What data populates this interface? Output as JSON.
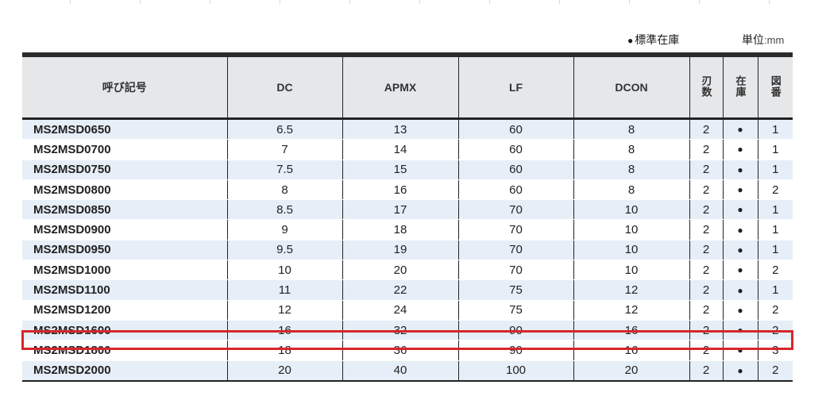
{
  "legend": {
    "symbol": "●",
    "label": "標準在庫"
  },
  "unit": {
    "label": "単位",
    "value": ":mm"
  },
  "table": {
    "headers": {
      "code": "呼び記号",
      "dc": "DC",
      "apmx": "APMX",
      "lf": "LF",
      "dcon": "DCON",
      "flutes": "刃数",
      "stock": "在庫",
      "drawing": "図番"
    },
    "rows": [
      {
        "code": "MS2MSD0650",
        "dc": "6.5",
        "apmx": "13",
        "lf": "60",
        "dcon": "8",
        "flutes": "2",
        "stock": "●",
        "drawing": "1"
      },
      {
        "code": "MS2MSD0700",
        "dc": "7",
        "apmx": "14",
        "lf": "60",
        "dcon": "8",
        "flutes": "2",
        "stock": "●",
        "drawing": "1"
      },
      {
        "code": "MS2MSD0750",
        "dc": "7.5",
        "apmx": "15",
        "lf": "60",
        "dcon": "8",
        "flutes": "2",
        "stock": "●",
        "drawing": "1"
      },
      {
        "code": "MS2MSD0800",
        "dc": "8",
        "apmx": "16",
        "lf": "60",
        "dcon": "8",
        "flutes": "2",
        "stock": "●",
        "drawing": "2"
      },
      {
        "code": "MS2MSD0850",
        "dc": "8.5",
        "apmx": "17",
        "lf": "70",
        "dcon": "10",
        "flutes": "2",
        "stock": "●",
        "drawing": "1"
      },
      {
        "code": "MS2MSD0900",
        "dc": "9",
        "apmx": "18",
        "lf": "70",
        "dcon": "10",
        "flutes": "2",
        "stock": "●",
        "drawing": "1"
      },
      {
        "code": "MS2MSD0950",
        "dc": "9.5",
        "apmx": "19",
        "lf": "70",
        "dcon": "10",
        "flutes": "2",
        "stock": "●",
        "drawing": "1"
      },
      {
        "code": "MS2MSD1000",
        "dc": "10",
        "apmx": "20",
        "lf": "70",
        "dcon": "10",
        "flutes": "2",
        "stock": "●",
        "drawing": "2"
      },
      {
        "code": "MS2MSD1100",
        "dc": "11",
        "apmx": "22",
        "lf": "75",
        "dcon": "12",
        "flutes": "2",
        "stock": "●",
        "drawing": "1"
      },
      {
        "code": "MS2MSD1200",
        "dc": "12",
        "apmx": "24",
        "lf": "75",
        "dcon": "12",
        "flutes": "2",
        "stock": "●",
        "drawing": "2"
      },
      {
        "code": "MS2MSD1600",
        "dc": "16",
        "apmx": "32",
        "lf": "90",
        "dcon": "16",
        "flutes": "2",
        "stock": "●",
        "drawing": "2"
      },
      {
        "code": "MS2MSD1800",
        "dc": "18",
        "apmx": "36",
        "lf": "90",
        "dcon": "16",
        "flutes": "2",
        "stock": "●",
        "drawing": "3"
      },
      {
        "code": "MS2MSD2000",
        "dc": "20",
        "apmx": "40",
        "lf": "100",
        "dcon": "20",
        "flutes": "2",
        "stock": "●",
        "drawing": "2"
      }
    ]
  },
  "colors": {
    "highlight": "#d6262c",
    "header_bg": "#e5e7e9",
    "row_alt": "#e6eef7"
  }
}
